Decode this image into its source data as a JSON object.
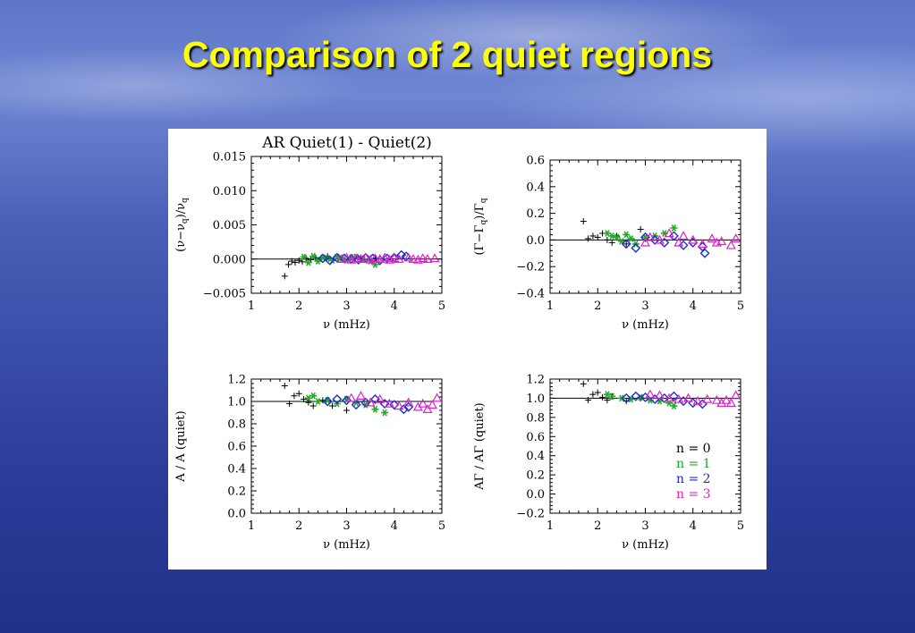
{
  "slide": {
    "title": "Comparison of 2 quiet regions"
  },
  "chart_data": [
    {
      "type": "scatter",
      "title": "AR Quiet(1) - Quiet(2)",
      "xlabel": "ν (mHz)",
      "ylabel": "(ν−ν_q)/ν_q",
      "xlim": [
        1,
        5
      ],
      "ylim": [
        -0.005,
        0.015
      ],
      "xticks": [
        "1",
        "2",
        "3",
        "4",
        "5"
      ],
      "yticks": [
        "−0.005",
        "0.000",
        "0.005",
        "0.010",
        "0.015"
      ],
      "yvals": [
        -0.005,
        0,
        0.005,
        0.01,
        0.015
      ],
      "reference_line": 0,
      "series": [
        {
          "name": "n = 0",
          "marker": "plus",
          "color": "#000000",
          "x": [
            1.7,
            1.78,
            1.85,
            1.92,
            2.0,
            2.07,
            2.15,
            2.25,
            2.35,
            2.6,
            2.9,
            3.1,
            3.3,
            3.6
          ],
          "y": [
            -0.0025,
            -0.0008,
            -0.0003,
            -0.0005,
            -0.0002,
            -0.0004,
            0.0001,
            -0.0001,
            0.0002,
            0.0004,
            0.0001,
            0.0003,
            0.0002,
            0.0001
          ]
        },
        {
          "name": "n = 1",
          "marker": "asterisk",
          "color": "#22aa22",
          "x": [
            2.1,
            2.2,
            2.3,
            2.4,
            2.5,
            2.6,
            2.7,
            2.8,
            2.9,
            3.0,
            3.1,
            3.2,
            3.35,
            3.5,
            3.6
          ],
          "y": [
            0.0003,
            -0.0005,
            0.0004,
            -0.0003,
            0.0002,
            0.0001,
            -0.0002,
            0.0003,
            0.0001,
            -0.0002,
            0.0002,
            0.0003,
            -0.0001,
            -0.0003,
            -0.0008
          ]
        },
        {
          "name": "n = 2",
          "marker": "diamond",
          "color": "#1f2fcc",
          "x": [
            2.5,
            2.65,
            2.8,
            2.95,
            3.1,
            3.25,
            3.4,
            3.55,
            3.7,
            3.85,
            4.0,
            4.15,
            4.25
          ],
          "y": [
            0.0001,
            -0.0002,
            0.0002,
            0.0001,
            0,
            -0.0001,
            0.0002,
            0.0001,
            -0.0002,
            0.0001,
            0.0002,
            0.0006,
            0.0004
          ]
        },
        {
          "name": "n = 3",
          "marker": "triangle",
          "color": "#dd22cc",
          "x": [
            2.9,
            3.0,
            3.1,
            3.2,
            3.3,
            3.4,
            3.5,
            3.6,
            3.7,
            3.8,
            3.9,
            4.0,
            4.1,
            4.3,
            4.4,
            4.5,
            4.6,
            4.7,
            4.85
          ],
          "y": [
            0,
            0.0002,
            -0.0001,
            0.0001,
            0,
            0.0002,
            -0.0001,
            0.0001,
            0,
            0.0002,
            -0.0001,
            0.0001,
            0,
            0.0002,
            0,
            -0.0001,
            0.0001,
            0,
            0.0001
          ]
        }
      ]
    },
    {
      "type": "scatter",
      "xlabel": "ν (mHz)",
      "ylabel": "(Γ−Γ_q)/Γ_q",
      "xlim": [
        1,
        5
      ],
      "ylim": [
        -0.4,
        0.6
      ],
      "xticks": [
        "1",
        "2",
        "3",
        "4",
        "5"
      ],
      "yticks": [
        "−0.4",
        "−0.2",
        "0.0",
        "0.2",
        "0.4",
        "0.6"
      ],
      "yvals": [
        -0.4,
        -0.2,
        0,
        0.2,
        0.4,
        0.6
      ],
      "reference_line": 0,
      "series": [
        {
          "name": "n = 0",
          "marker": "plus",
          "color": "#000000",
          "x": [
            1.7,
            1.8,
            1.9,
            2.0,
            2.1,
            2.2,
            2.3,
            2.4,
            2.6,
            2.9
          ],
          "y": [
            0.14,
            0.01,
            0.03,
            0.02,
            0.05,
            0.0,
            -0.02,
            0.03,
            -0.03,
            0.08
          ]
        },
        {
          "name": "n = 1",
          "marker": "asterisk",
          "color": "#22aa22",
          "x": [
            2.2,
            2.3,
            2.4,
            2.5,
            2.6,
            2.7,
            2.8,
            3.0,
            3.2,
            3.4,
            3.6
          ],
          "y": [
            0.05,
            0.03,
            0.02,
            -0.01,
            0.04,
            0.01,
            -0.03,
            0.02,
            0.03,
            0.05,
            0.09
          ]
        },
        {
          "name": "n = 2",
          "marker": "diamond",
          "color": "#1f2fcc",
          "x": [
            2.6,
            2.8,
            3.0,
            3.2,
            3.4,
            3.6,
            3.8,
            4.0,
            4.2,
            4.25
          ],
          "y": [
            -0.03,
            -0.06,
            0.02,
            0.0,
            -0.02,
            0.03,
            -0.04,
            -0.02,
            -0.05,
            -0.1
          ]
        },
        {
          "name": "n = 3",
          "marker": "triangle",
          "color": "#dd22cc",
          "x": [
            3.0,
            3.1,
            3.3,
            3.5,
            3.7,
            3.8,
            4.0,
            4.2,
            4.4,
            4.5,
            4.6,
            4.8,
            4.9
          ],
          "y": [
            -0.02,
            0.02,
            0.0,
            0.05,
            -0.02,
            0.03,
            0.0,
            -0.03,
            0.01,
            -0.02,
            -0.01,
            -0.04,
            0.01
          ]
        }
      ]
    },
    {
      "type": "scatter",
      "xlabel": "ν (mHz)",
      "ylabel": "A / A (quiet)",
      "xlim": [
        1,
        5
      ],
      "ylim": [
        0,
        1.2
      ],
      "xticks": [
        "1",
        "2",
        "3",
        "4",
        "5"
      ],
      "yticks": [
        "0.0",
        "0.2",
        "0.4",
        "0.6",
        "0.8",
        "1.0",
        "1.2"
      ],
      "yvals": [
        0,
        0.2,
        0.4,
        0.6,
        0.8,
        1.0,
        1.2
      ],
      "reference_line": 1.0,
      "series": [
        {
          "name": "n = 0",
          "marker": "plus",
          "color": "#000000",
          "x": [
            1.7,
            1.8,
            1.9,
            2.0,
            2.1,
            2.2,
            2.3,
            2.5,
            2.7,
            3.0
          ],
          "y": [
            1.14,
            0.98,
            1.05,
            1.07,
            1.02,
            0.99,
            0.96,
            1.01,
            0.96,
            0.92
          ]
        },
        {
          "name": "n = 1",
          "marker": "asterisk",
          "color": "#22aa22",
          "x": [
            2.2,
            2.3,
            2.4,
            2.6,
            2.8,
            3.0,
            3.2,
            3.4,
            3.6,
            3.8
          ],
          "y": [
            1.03,
            1.05,
            1.0,
            1.01,
            0.98,
            1.02,
            0.99,
            0.97,
            0.93,
            0.9
          ]
        },
        {
          "name": "n = 2",
          "marker": "diamond",
          "color": "#1f2fcc",
          "x": [
            2.6,
            2.8,
            3.0,
            3.2,
            3.4,
            3.6,
            3.8,
            4.0,
            4.2,
            4.3
          ],
          "y": [
            1.0,
            1.02,
            1.01,
            0.97,
            0.99,
            1.02,
            0.98,
            0.97,
            0.93,
            0.95
          ]
        },
        {
          "name": "n = 3",
          "marker": "triangle",
          "color": "#dd22cc",
          "x": [
            3.1,
            3.3,
            3.5,
            3.7,
            3.9,
            4.1,
            4.3,
            4.5,
            4.6,
            4.7,
            4.8,
            4.9
          ],
          "y": [
            1.03,
            1.05,
            0.99,
            1.02,
            0.98,
            0.96,
            0.99,
            0.95,
            0.98,
            0.93,
            0.97,
            1.03
          ]
        }
      ]
    },
    {
      "type": "scatter",
      "xlabel": "ν (mHz)",
      "ylabel": "AΓ / AΓ (quiet)",
      "xlim": [
        1,
        5
      ],
      "ylim": [
        -0.2,
        1.2
      ],
      "xticks": [
        "1",
        "2",
        "3",
        "4",
        "5"
      ],
      "yticks": [
        "−0.2",
        "0.0",
        "0.2",
        "0.4",
        "0.6",
        "0.8",
        "1.0",
        "1.2"
      ],
      "yvals": [
        -0.2,
        0,
        0.2,
        0.4,
        0.6,
        0.8,
        1.0,
        1.2
      ],
      "reference_line": 1.0,
      "legend": {
        "placement": "lower-right",
        "entries": [
          "n = 0",
          "n = 1",
          "n = 2",
          "n = 3"
        ],
        "colors": [
          "#000000",
          "#22aa22",
          "#1f2fcc",
          "#dd22cc"
        ]
      },
      "series": [
        {
          "name": "n = 0",
          "marker": "plus",
          "color": "#000000",
          "x": [
            1.7,
            1.8,
            1.9,
            2.0,
            2.1,
            2.2,
            2.3,
            2.6,
            2.9
          ],
          "y": [
            1.15,
            0.98,
            1.04,
            1.06,
            1.01,
            0.98,
            1.02,
            0.97,
            1.0
          ]
        },
        {
          "name": "n = 1",
          "marker": "asterisk",
          "color": "#22aa22",
          "x": [
            2.2,
            2.3,
            2.5,
            2.7,
            2.9,
            3.1,
            3.3,
            3.5,
            3.6
          ],
          "y": [
            1.04,
            1.02,
            1.0,
            0.99,
            1.01,
            0.98,
            0.97,
            0.95,
            0.92
          ]
        },
        {
          "name": "n = 2",
          "marker": "diamond",
          "color": "#1f2fcc",
          "x": [
            2.6,
            2.8,
            3.0,
            3.2,
            3.4,
            3.6,
            3.8,
            4.0,
            4.2
          ],
          "y": [
            1.0,
            1.02,
            1.01,
            0.99,
            1.0,
            1.02,
            0.97,
            0.95,
            0.94
          ]
        },
        {
          "name": "n = 3",
          "marker": "triangle",
          "color": "#dd22cc",
          "x": [
            3.1,
            3.3,
            3.5,
            3.7,
            3.9,
            4.1,
            4.3,
            4.5,
            4.6,
            4.7,
            4.8,
            4.9
          ],
          "y": [
            1.04,
            1.03,
            1.0,
            0.99,
            1.0,
            0.97,
            0.99,
            0.98,
            0.95,
            0.98,
            0.95,
            1.03
          ]
        }
      ]
    }
  ]
}
